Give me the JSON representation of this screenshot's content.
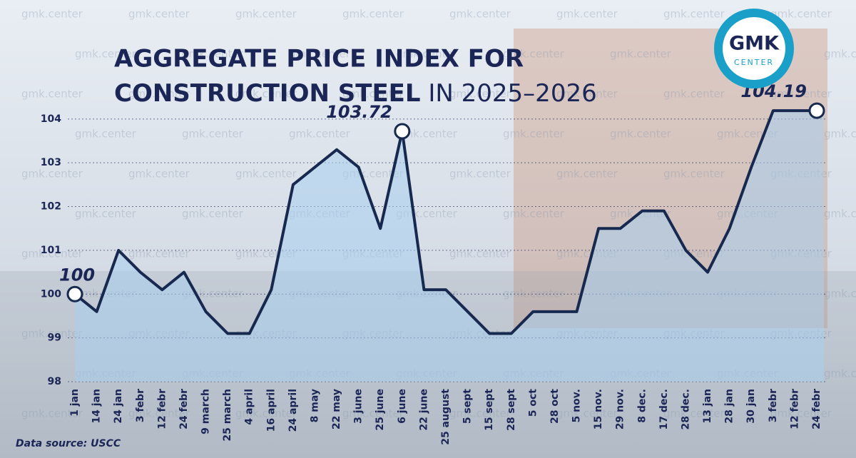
{
  "chart_data": {
    "type": "line",
    "title": {
      "line1": "AGGREGATE PRICE INDEX FOR",
      "line2_bold": "CONSTRUCTION STEEL",
      "line2_rest": "IN 2025–2026"
    },
    "source": "Data source: USCC",
    "logo": {
      "main": "GMK",
      "sub": "CENTER"
    },
    "watermark": "gmk.center",
    "categories": [
      "1 jan",
      "14 jan",
      "24 jan",
      "3 febr",
      "12 febr",
      "24 febr",
      "9 march",
      "25 march",
      "4 april",
      "16 april",
      "24 april",
      "8 may",
      "22 may",
      "3 june",
      "25 june",
      "6 june",
      "22 june",
      "25 august",
      "5 sept",
      "15 sept",
      "28 sept",
      "5 oct",
      "28 oct",
      "5 nov.",
      "15 nov.",
      "29 nov.",
      "8 dec.",
      "17 dec.",
      "28 dec.",
      "13 jan",
      "28 jan",
      "30 jan",
      "3 febr",
      "12 febr",
      "24 febr"
    ],
    "series": [
      {
        "name": "Aggregate price index",
        "color": "#17294f",
        "values": [
          100,
          99.6,
          101,
          100.5,
          100.1,
          100.5,
          99.6,
          99.1,
          99.1,
          100.1,
          102.5,
          102.9,
          103.3,
          102.9,
          101.5,
          103.72,
          100.1,
          100.1,
          99.6,
          99.1,
          99.1,
          99.6,
          99.6,
          99.6,
          101.5,
          101.5,
          101.9,
          101.9,
          101,
          100.5,
          101.5,
          102.9,
          104.19,
          104.19,
          104.19
        ]
      }
    ],
    "labeled_points": [
      0,
      15,
      34
    ],
    "ylim": [
      98,
      104.6
    ],
    "yticks": [
      98,
      99,
      100,
      101,
      102,
      103,
      104
    ],
    "grid": true
  }
}
